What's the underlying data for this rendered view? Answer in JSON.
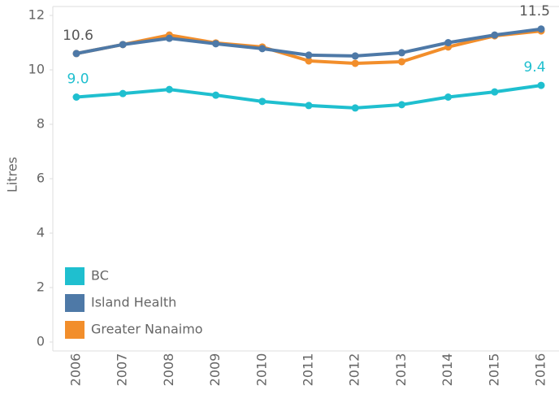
{
  "chart_data": {
    "type": "line",
    "y_label": "Litres",
    "categories": [
      "2006",
      "2007",
      "2008",
      "2009",
      "2010",
      "2011",
      "2012",
      "2013",
      "2014",
      "2015",
      "2016"
    ],
    "series": [
      {
        "name": "BC",
        "color": "#1fbfcf",
        "values": [
          9.0,
          9.13,
          9.28,
          9.07,
          8.84,
          8.69,
          8.6,
          8.72,
          9.0,
          9.19,
          9.43
        ],
        "value_labels": [
          "9.0",
          null,
          null,
          null,
          null,
          null,
          null,
          null,
          null,
          null,
          "9.4"
        ]
      },
      {
        "name": "Island Health",
        "color": "#4e79a7",
        "values": [
          10.6,
          10.93,
          11.16,
          10.96,
          10.78,
          10.54,
          10.51,
          10.63,
          11.0,
          11.28,
          11.5
        ],
        "value_labels": [
          "10.6",
          null,
          null,
          null,
          null,
          null,
          null,
          null,
          null,
          null,
          "11.5"
        ]
      },
      {
        "name": "Greater Nanaimo",
        "color": "#f28e2b",
        "values": [
          10.6,
          10.93,
          11.28,
          10.99,
          10.84,
          10.33,
          10.24,
          10.3,
          10.84,
          11.25,
          11.43
        ]
      }
    ],
    "ylim": [
      0,
      12.3
    ],
    "yticks": [
      0,
      2,
      4,
      6,
      8,
      10,
      12
    ],
    "legend": "lower-left"
  }
}
